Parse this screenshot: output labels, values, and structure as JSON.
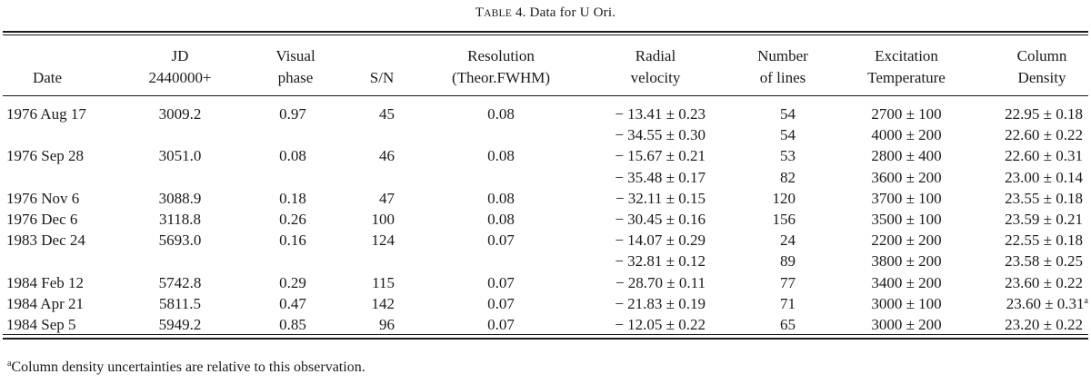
{
  "caption": {
    "lead": "T",
    "small": "ABLE",
    "rest": " 4. Data for U Ori."
  },
  "headers": [
    {
      "key": "date",
      "line1": "",
      "line2": "Date"
    },
    {
      "key": "jd",
      "line1": "JD",
      "line2": "2440000+"
    },
    {
      "key": "phase",
      "line1": "Visual",
      "line2": "phase"
    },
    {
      "key": "sn",
      "line1": "",
      "line2": "S/N"
    },
    {
      "key": "res",
      "line1": "Resolution",
      "line2": "(Theor.FWHM)"
    },
    {
      "key": "rv",
      "line1": "Radial",
      "line2": "velocity"
    },
    {
      "key": "lines",
      "line1": "Number",
      "line2": "of lines"
    },
    {
      "key": "temp",
      "line1": "Excitation",
      "line2": "Temperature"
    },
    {
      "key": "col",
      "line1": "Column",
      "line2": "Density"
    }
  ],
  "rows": [
    {
      "date": "1976 Aug 17",
      "jd": "3009.2",
      "phase": "0.97",
      "sn": "45",
      "res": "0.08",
      "rv": "− 13.41 ± 0.23",
      "lines": "54",
      "temp": "2700 ± 100",
      "col": "22.95 ± 0.18",
      "sup": ""
    },
    {
      "date": "",
      "jd": "",
      "phase": "",
      "sn": "",
      "res": "",
      "rv": "− 34.55 ± 0.30",
      "lines": "54",
      "temp": "4000 ± 200",
      "col": "22.60 ± 0.22",
      "sup": ""
    },
    {
      "date": "1976 Sep 28",
      "jd": "3051.0",
      "phase": "0.08",
      "sn": "46",
      "res": "0.08",
      "rv": "− 15.67 ± 0.21",
      "lines": "53",
      "temp": "2800 ± 400",
      "col": "22.60 ± 0.31",
      "sup": ""
    },
    {
      "date": "",
      "jd": "",
      "phase": "",
      "sn": "",
      "res": "",
      "rv": "− 35.48 ± 0.17",
      "lines": "82",
      "temp": "3600 ± 200",
      "col": "23.00 ± 0.14",
      "sup": ""
    },
    {
      "date": "1976 Nov 6",
      "jd": "3088.9",
      "phase": "0.18",
      "sn": "47",
      "res": "0.08",
      "rv": "− 32.11 ± 0.15",
      "lines": "120",
      "temp": "3700 ± 100",
      "col": "23.55 ± 0.18",
      "sup": ""
    },
    {
      "date": "1976 Dec 6",
      "jd": "3118.8",
      "phase": "0.26",
      "sn": "100",
      "res": "0.08",
      "rv": "− 30.45 ± 0.16",
      "lines": "156",
      "temp": "3500 ± 100",
      "col": "23.59 ± 0.21",
      "sup": ""
    },
    {
      "date": "1983 Dec 24",
      "jd": "5693.0",
      "phase": "0.16",
      "sn": "124",
      "res": "0.07",
      "rv": "− 14.07 ± 0.29",
      "lines": "24",
      "temp": "2200 ± 200",
      "col": "22.55 ± 0.18",
      "sup": ""
    },
    {
      "date": "",
      "jd": "",
      "phase": "",
      "sn": "",
      "res": "",
      "rv": "− 32.81 ± 0.12",
      "lines": "89",
      "temp": "3800 ± 200",
      "col": "23.58 ± 0.25",
      "sup": ""
    },
    {
      "date": "1984 Feb 12",
      "jd": "5742.8",
      "phase": "0.29",
      "sn": "115",
      "res": "0.07",
      "rv": "− 28.70 ± 0.11",
      "lines": "77",
      "temp": "3400 ± 200",
      "col": "23.60 ± 0.22",
      "sup": ""
    },
    {
      "date": "1984 Apr 21",
      "jd": "5811.5",
      "phase": "0.47",
      "sn": "142",
      "res": "0.07",
      "rv": "− 21.83 ± 0.19",
      "lines": "71",
      "temp": "3000 ± 100",
      "col": "23.60 ± 0.31",
      "sup": "a"
    },
    {
      "date": "1984 Sep 5",
      "jd": "5949.2",
      "phase": "0.85",
      "sn": "96",
      "res": "0.07",
      "rv": "− 12.05 ± 0.22",
      "lines": "65",
      "temp": "3000 ± 200",
      "col": "23.20 ± 0.22",
      "sup": ""
    }
  ],
  "footnote": {
    "mark": "a",
    "text": "Column density uncertainties are relative to this observation."
  }
}
